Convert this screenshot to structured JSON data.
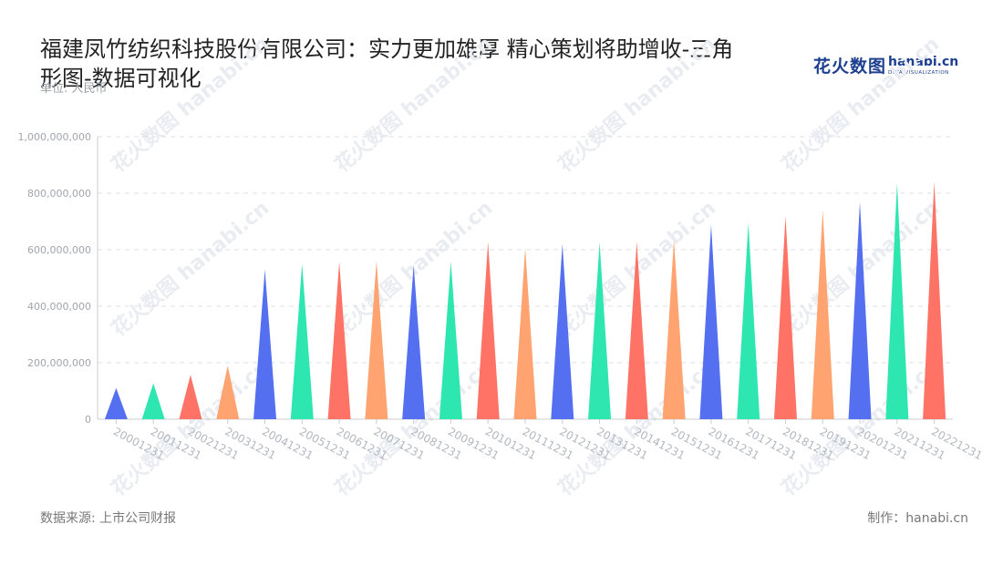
{
  "header": {
    "title": "福建凤竹纺织科技股份有限公司：实力更加雄厚 精心策划将助增收-三角形图-数据可视化",
    "unit": "单位: 人民币"
  },
  "logo": {
    "cn": "花火数图",
    "en": "hanabi.cn",
    "sub": "DATA VISUALIZATION"
  },
  "footer": {
    "source": "数据来源: 上市公司财报",
    "credit": "制作：hanabi.cn"
  },
  "colors": {
    "palette": [
      "#5470f0",
      "#2ee6b0",
      "#ff7366",
      "#ffa370"
    ],
    "grid": "#dcdfe6",
    "tick": "#a0a5ad"
  },
  "chart_data": {
    "type": "bar",
    "shape": "triangle",
    "categories": [
      "20001231",
      "20011231",
      "20021231",
      "20031231",
      "20041231",
      "20051231",
      "20061231",
      "20071231",
      "20081231",
      "20091231",
      "20101231",
      "20111231",
      "20121231",
      "20131231",
      "20141231",
      "20151231",
      "20161231",
      "20171231",
      "20181231",
      "20191231",
      "20201231",
      "20211231",
      "20221231"
    ],
    "values": [
      110000000,
      127000000,
      157000000,
      190000000,
      530000000,
      550000000,
      557000000,
      560000000,
      545000000,
      558000000,
      628000000,
      605000000,
      620000000,
      626000000,
      628000000,
      635000000,
      688000000,
      694000000,
      718000000,
      740000000,
      768000000,
      835000000,
      842000000
    ],
    "ylim": [
      0,
      1000000000
    ],
    "yticks": [
      0,
      200000000,
      400000000,
      600000000,
      800000000,
      1000000000
    ],
    "ytick_labels": [
      "0",
      "200,000,000",
      "400,000,000",
      "600,000,000",
      "800,000,000",
      "1,000,000,000"
    ],
    "grid": true,
    "xlabel": "",
    "ylabel": ""
  }
}
